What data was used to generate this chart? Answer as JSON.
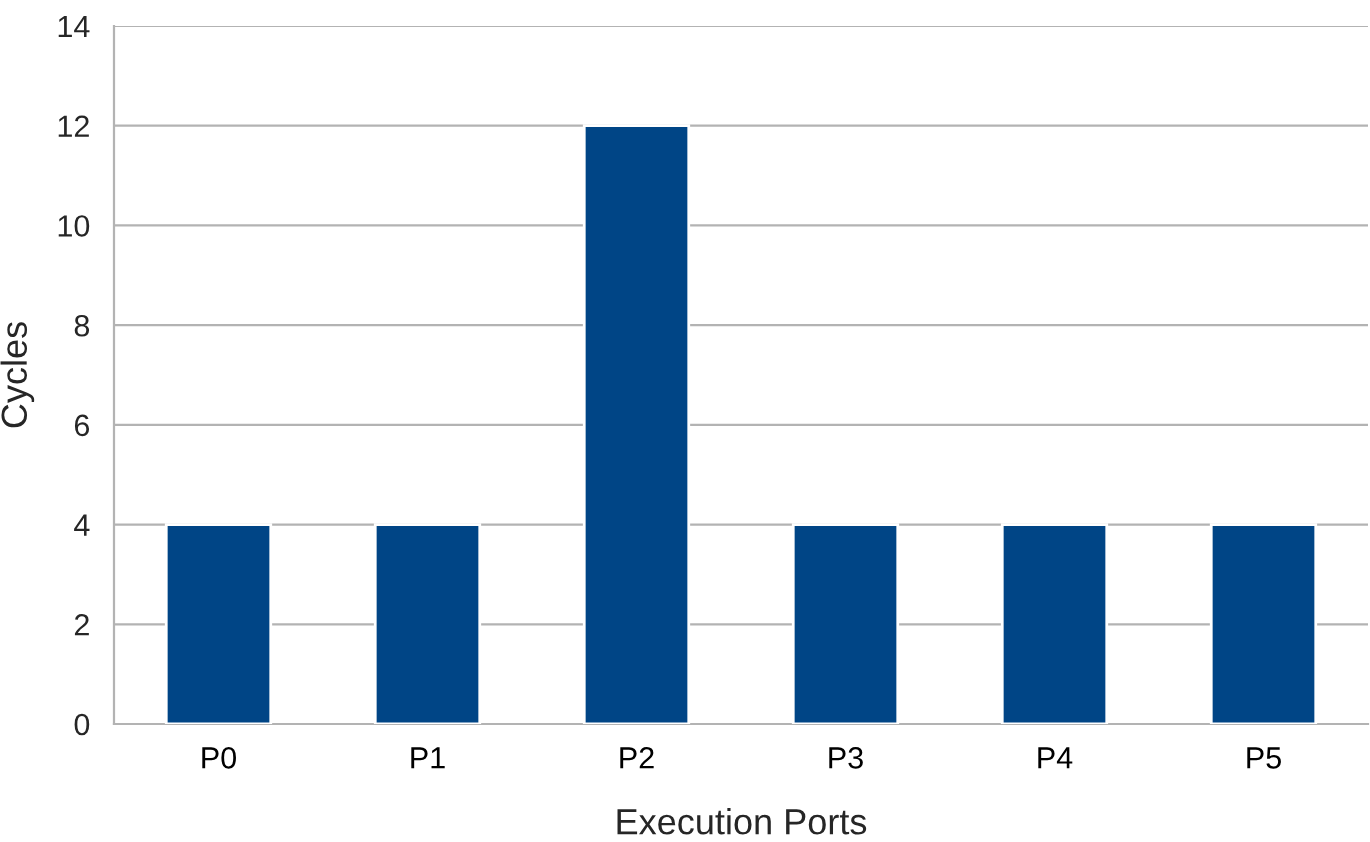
{
  "chart_data": {
    "type": "bar",
    "xlabel": "Execution Ports",
    "ylabel": "Cycles",
    "categories": [
      "P0",
      "P1",
      "P2",
      "P3",
      "P4",
      "P5"
    ],
    "values": [
      4,
      4,
      12,
      4,
      4,
      4
    ],
    "color": "#004586",
    "ylim": [
      0,
      14
    ],
    "yticks": [
      0,
      2,
      4,
      6,
      8,
      10,
      12,
      14
    ],
    "grid": "y",
    "legend": false
  }
}
